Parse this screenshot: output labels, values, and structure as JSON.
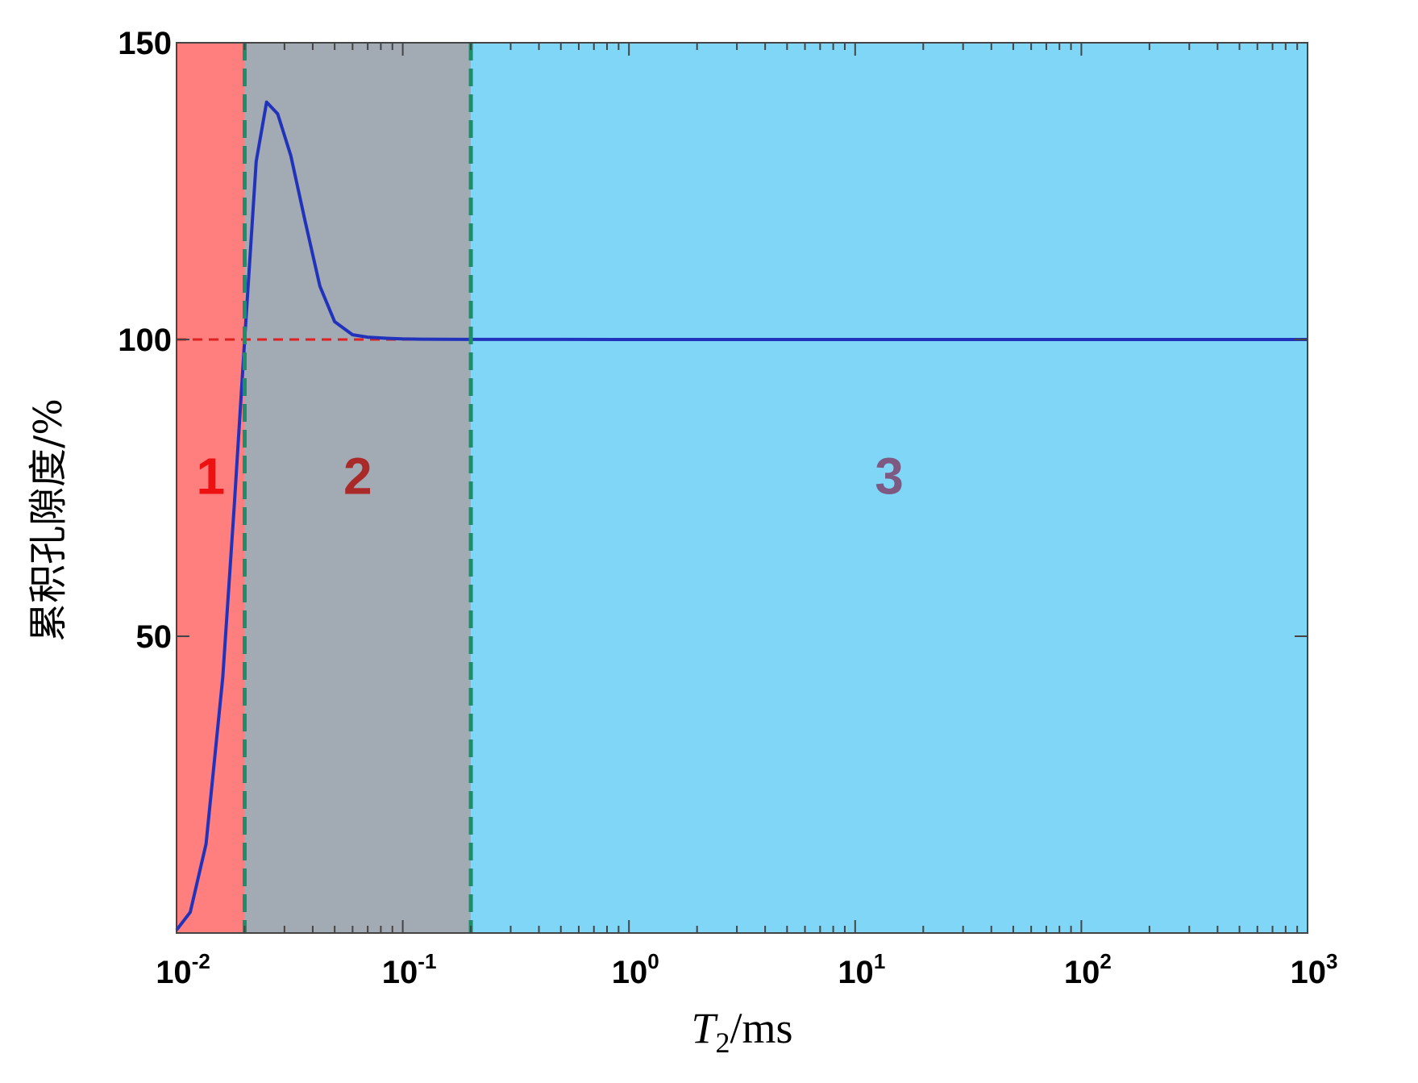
{
  "chart_data": {
    "type": "line",
    "x_scale": "log",
    "xlim": [
      0.01,
      1000
    ],
    "ylim": [
      0,
      150
    ],
    "yticks": [
      {
        "value": 50,
        "label": "50"
      },
      {
        "value": 100,
        "label": "100"
      },
      {
        "value": 150,
        "label": "150"
      }
    ],
    "xticks": [
      {
        "value": 0.01,
        "base": "10",
        "exp": "-2"
      },
      {
        "value": 0.1,
        "base": "10",
        "exp": "-1"
      },
      {
        "value": 1,
        "base": "10",
        "exp": "0"
      },
      {
        "value": 10,
        "base": "10",
        "exp": "1"
      },
      {
        "value": 100,
        "base": "10",
        "exp": "2"
      },
      {
        "value": 1000,
        "base": "10",
        "exp": "3"
      }
    ],
    "xlabel": {
      "main": "T",
      "sub": "2",
      "unit": "/ms"
    },
    "ylabel": "累积孔隙度/%",
    "grid": false,
    "regions": [
      {
        "label": "1",
        "x_start": 0.01,
        "x_end": 0.02,
        "color": "#ff7f7f",
        "label_color": "#ee1111"
      },
      {
        "label": "2",
        "x_start": 0.02,
        "x_end": 0.2,
        "color": "#a2aab4",
        "label_color": "#aa2a2a"
      },
      {
        "label": "3",
        "x_start": 0.2,
        "x_end": 1000,
        "color": "#80d6f6",
        "label_color": "#7e5a82"
      }
    ],
    "boundaries": [
      0.02,
      0.2
    ],
    "boundary_color": "#1f8c6a",
    "reference_line": {
      "y": 100,
      "color": "#dd2222"
    },
    "series": [
      {
        "color": "#2233bb",
        "x": [
          0.01,
          0.0115,
          0.0135,
          0.016,
          0.018,
          0.02,
          0.0225,
          0.025,
          0.028,
          0.032,
          0.037,
          0.043,
          0.05,
          0.06,
          0.07,
          0.085,
          0.1,
          0.12,
          0.15,
          0.2,
          0.3,
          0.5,
          1,
          3,
          10,
          30,
          100,
          300,
          1000
        ],
        "y": [
          0.5,
          3.5,
          15,
          43,
          72,
          100,
          130,
          140,
          138,
          131,
          120,
          109,
          103,
          100.8,
          100.4,
          100.2,
          100.1,
          100.05,
          100.03,
          100.02,
          100.01,
          100.01,
          100,
          100,
          100,
          100,
          100,
          100,
          100
        ]
      }
    ]
  }
}
